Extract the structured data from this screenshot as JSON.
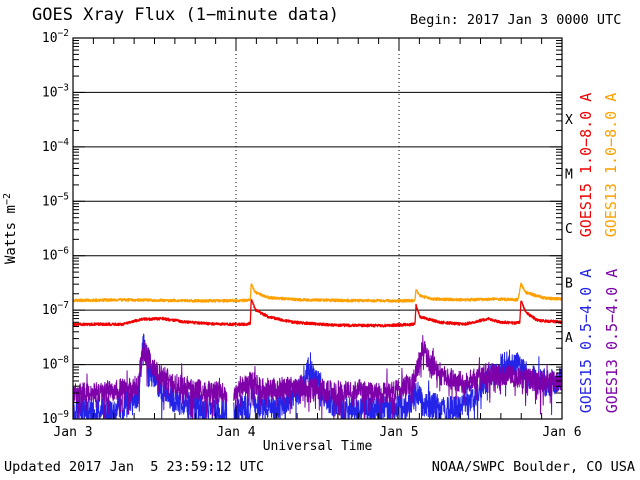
{
  "header": {
    "title": "GOES Xray Flux (1−minute data)",
    "begin": "Begin: 2017 Jan 3 0000 UTC"
  },
  "footer": {
    "updated": "Updated 2017 Jan  5 23:59:12 UTC",
    "credit": "NOAA/SWPC Boulder, CO USA"
  },
  "chart_data": {
    "type": "line",
    "title": "GOES Xray Flux (1-minute data)",
    "xlabel": "Universal Time",
    "ylabel_base": "Watts m",
    "ylabel_exp": "−2",
    "x_unit": "days since 2017 Jan 3 0000 UTC",
    "x_range": [
      0,
      3
    ],
    "x_ticks": [
      {
        "day": 0,
        "label": "Jan 3"
      },
      {
        "day": 1,
        "label": "Jan 4"
      },
      {
        "day": 2,
        "label": "Jan 5"
      },
      {
        "day": 3,
        "label": "Jan 6"
      }
    ],
    "x_minor_tick_hours": 3,
    "y_scale": "log",
    "y_range": [
      1e-09,
      0.01
    ],
    "y_tick_base": "10",
    "y_tick_exponents": [
      -2,
      -3,
      -4,
      -5,
      -6,
      -7,
      -8,
      -9
    ],
    "grid": {
      "horizontal": "solid line at each decade",
      "vertical": "dotted line at each day boundary"
    },
    "legend_position": "right, rotated 90deg",
    "flare_class_letters": [
      {
        "label": "X",
        "log_flux": -3.5
      },
      {
        "label": "M",
        "log_flux": -4.5
      },
      {
        "label": "C",
        "log_flux": -5.5
      },
      {
        "label": "B",
        "log_flux": -6.5
      },
      {
        "label": "A",
        "log_flux": -7.5
      }
    ],
    "series": [
      {
        "name": "GOES15 1.0−8.0 A",
        "color": "#f00000",
        "noise_dex": 0.025,
        "gaps": [],
        "points": [
          [
            0,
            5.5e-08
          ],
          [
            0.3,
            5.5e-08
          ],
          [
            0.42,
            6.8e-08
          ],
          [
            0.55,
            7e-08
          ],
          [
            0.7,
            6e-08
          ],
          [
            0.9,
            5.5e-08
          ],
          [
            1.07,
            5.5e-08
          ],
          [
            1.088,
            5.8e-08
          ],
          [
            1.093,
            1.6e-07
          ],
          [
            1.12,
            1e-07
          ],
          [
            1.2,
            7.5e-08
          ],
          [
            1.35,
            6e-08
          ],
          [
            1.6,
            5.3e-08
          ],
          [
            1.9,
            5.2e-08
          ],
          [
            2.09,
            5.5e-08
          ],
          [
            2.098,
            5.5e-08
          ],
          [
            2.104,
            1.25e-07
          ],
          [
            2.13,
            7.5e-08
          ],
          [
            2.25,
            6e-08
          ],
          [
            2.4,
            5.5e-08
          ],
          [
            2.55,
            7e-08
          ],
          [
            2.62,
            6e-08
          ],
          [
            2.72,
            5.8e-08
          ],
          [
            2.742,
            6e-08
          ],
          [
            2.748,
            1.5e-07
          ],
          [
            2.78,
            9e-08
          ],
          [
            2.85,
            6.5e-08
          ],
          [
            3,
            6e-08
          ]
        ]
      },
      {
        "name": "GOES13 1.0−8.0 A",
        "color": "#ffa000",
        "noise_dex": 0.025,
        "gaps": [],
        "points": [
          [
            0,
            1.5e-07
          ],
          [
            0.3,
            1.55e-07
          ],
          [
            0.6,
            1.5e-07
          ],
          [
            0.9,
            1.48e-07
          ],
          [
            1.07,
            1.5e-07
          ],
          [
            1.088,
            1.55e-07
          ],
          [
            1.093,
            3e-07
          ],
          [
            1.12,
            2.1e-07
          ],
          [
            1.2,
            1.7e-07
          ],
          [
            1.4,
            1.55e-07
          ],
          [
            1.7,
            1.5e-07
          ],
          [
            2.0,
            1.48e-07
          ],
          [
            2.098,
            1.5e-07
          ],
          [
            2.104,
            2.4e-07
          ],
          [
            2.13,
            1.85e-07
          ],
          [
            2.2,
            1.6e-07
          ],
          [
            2.4,
            1.55e-07
          ],
          [
            2.6,
            1.6e-07
          ],
          [
            2.73,
            1.55e-07
          ],
          [
            2.748,
            3e-07
          ],
          [
            2.78,
            2.1e-07
          ],
          [
            2.9,
            1.65e-07
          ],
          [
            3,
            1.6e-07
          ]
        ]
      },
      {
        "name": "GOES15 0.5−4.0 A",
        "color": "#2424e8",
        "noise_dex": 0.24,
        "gaps": [
          [
            0.945,
            0.985
          ]
        ],
        "points": [
          [
            0,
            1.5e-09
          ],
          [
            0.15,
            1.4e-09
          ],
          [
            0.3,
            1.8e-09
          ],
          [
            0.4,
            2.5e-09
          ],
          [
            0.428,
            2.4e-08
          ],
          [
            0.46,
            1.3e-08
          ],
          [
            0.5,
            5.5e-09
          ],
          [
            0.56,
            3.2e-09
          ],
          [
            0.65,
            2e-09
          ],
          [
            0.8,
            1.5e-09
          ],
          [
            1.0,
            1.5e-09
          ],
          [
            1.088,
            1.6e-09
          ],
          [
            1.095,
            4.5e-09
          ],
          [
            1.12,
            2e-09
          ],
          [
            1.25,
            1.7e-09
          ],
          [
            1.38,
            3e-09
          ],
          [
            1.44,
            8e-09
          ],
          [
            1.5,
            5e-09
          ],
          [
            1.56,
            2.2e-09
          ],
          [
            1.7,
            1.4e-09
          ],
          [
            1.9,
            1.5e-09
          ],
          [
            2.05,
            1.6e-09
          ],
          [
            2.104,
            3.5e-09
          ],
          [
            2.14,
            2e-09
          ],
          [
            2.3,
            1.5e-09
          ],
          [
            2.45,
            2.2e-09
          ],
          [
            2.53,
            5e-09
          ],
          [
            2.62,
            9e-09
          ],
          [
            2.68,
            1.1e-08
          ],
          [
            2.748,
            9e-09
          ],
          [
            2.8,
            6e-09
          ],
          [
            2.9,
            4.5e-09
          ],
          [
            3,
            5e-09
          ]
        ]
      },
      {
        "name": "GOES13 0.5−4.0 A",
        "color": "#7d00a8",
        "noise_dex": 0.2,
        "gaps": [
          [
            0.945,
            0.985
          ]
        ],
        "points": [
          [
            0,
            3e-09
          ],
          [
            0.2,
            3.2e-09
          ],
          [
            0.4,
            4e-09
          ],
          [
            0.428,
            2e-08
          ],
          [
            0.46,
            1.3e-08
          ],
          [
            0.52,
            7e-09
          ],
          [
            0.62,
            4.5e-09
          ],
          [
            0.8,
            3.2e-09
          ],
          [
            1.0,
            3e-09
          ],
          [
            1.095,
            5e-09
          ],
          [
            1.15,
            3.5e-09
          ],
          [
            1.4,
            4e-09
          ],
          [
            1.6,
            3.2e-09
          ],
          [
            1.85,
            3e-09
          ],
          [
            2.0,
            3.5e-09
          ],
          [
            2.09,
            5e-09
          ],
          [
            2.145,
            2.2e-08
          ],
          [
            2.19,
            1.1e-08
          ],
          [
            2.27,
            6e-09
          ],
          [
            2.4,
            4.5e-09
          ],
          [
            2.55,
            7e-09
          ],
          [
            2.7,
            6e-09
          ],
          [
            2.85,
            5e-09
          ],
          [
            3,
            4.5e-09
          ]
        ]
      }
    ]
  }
}
